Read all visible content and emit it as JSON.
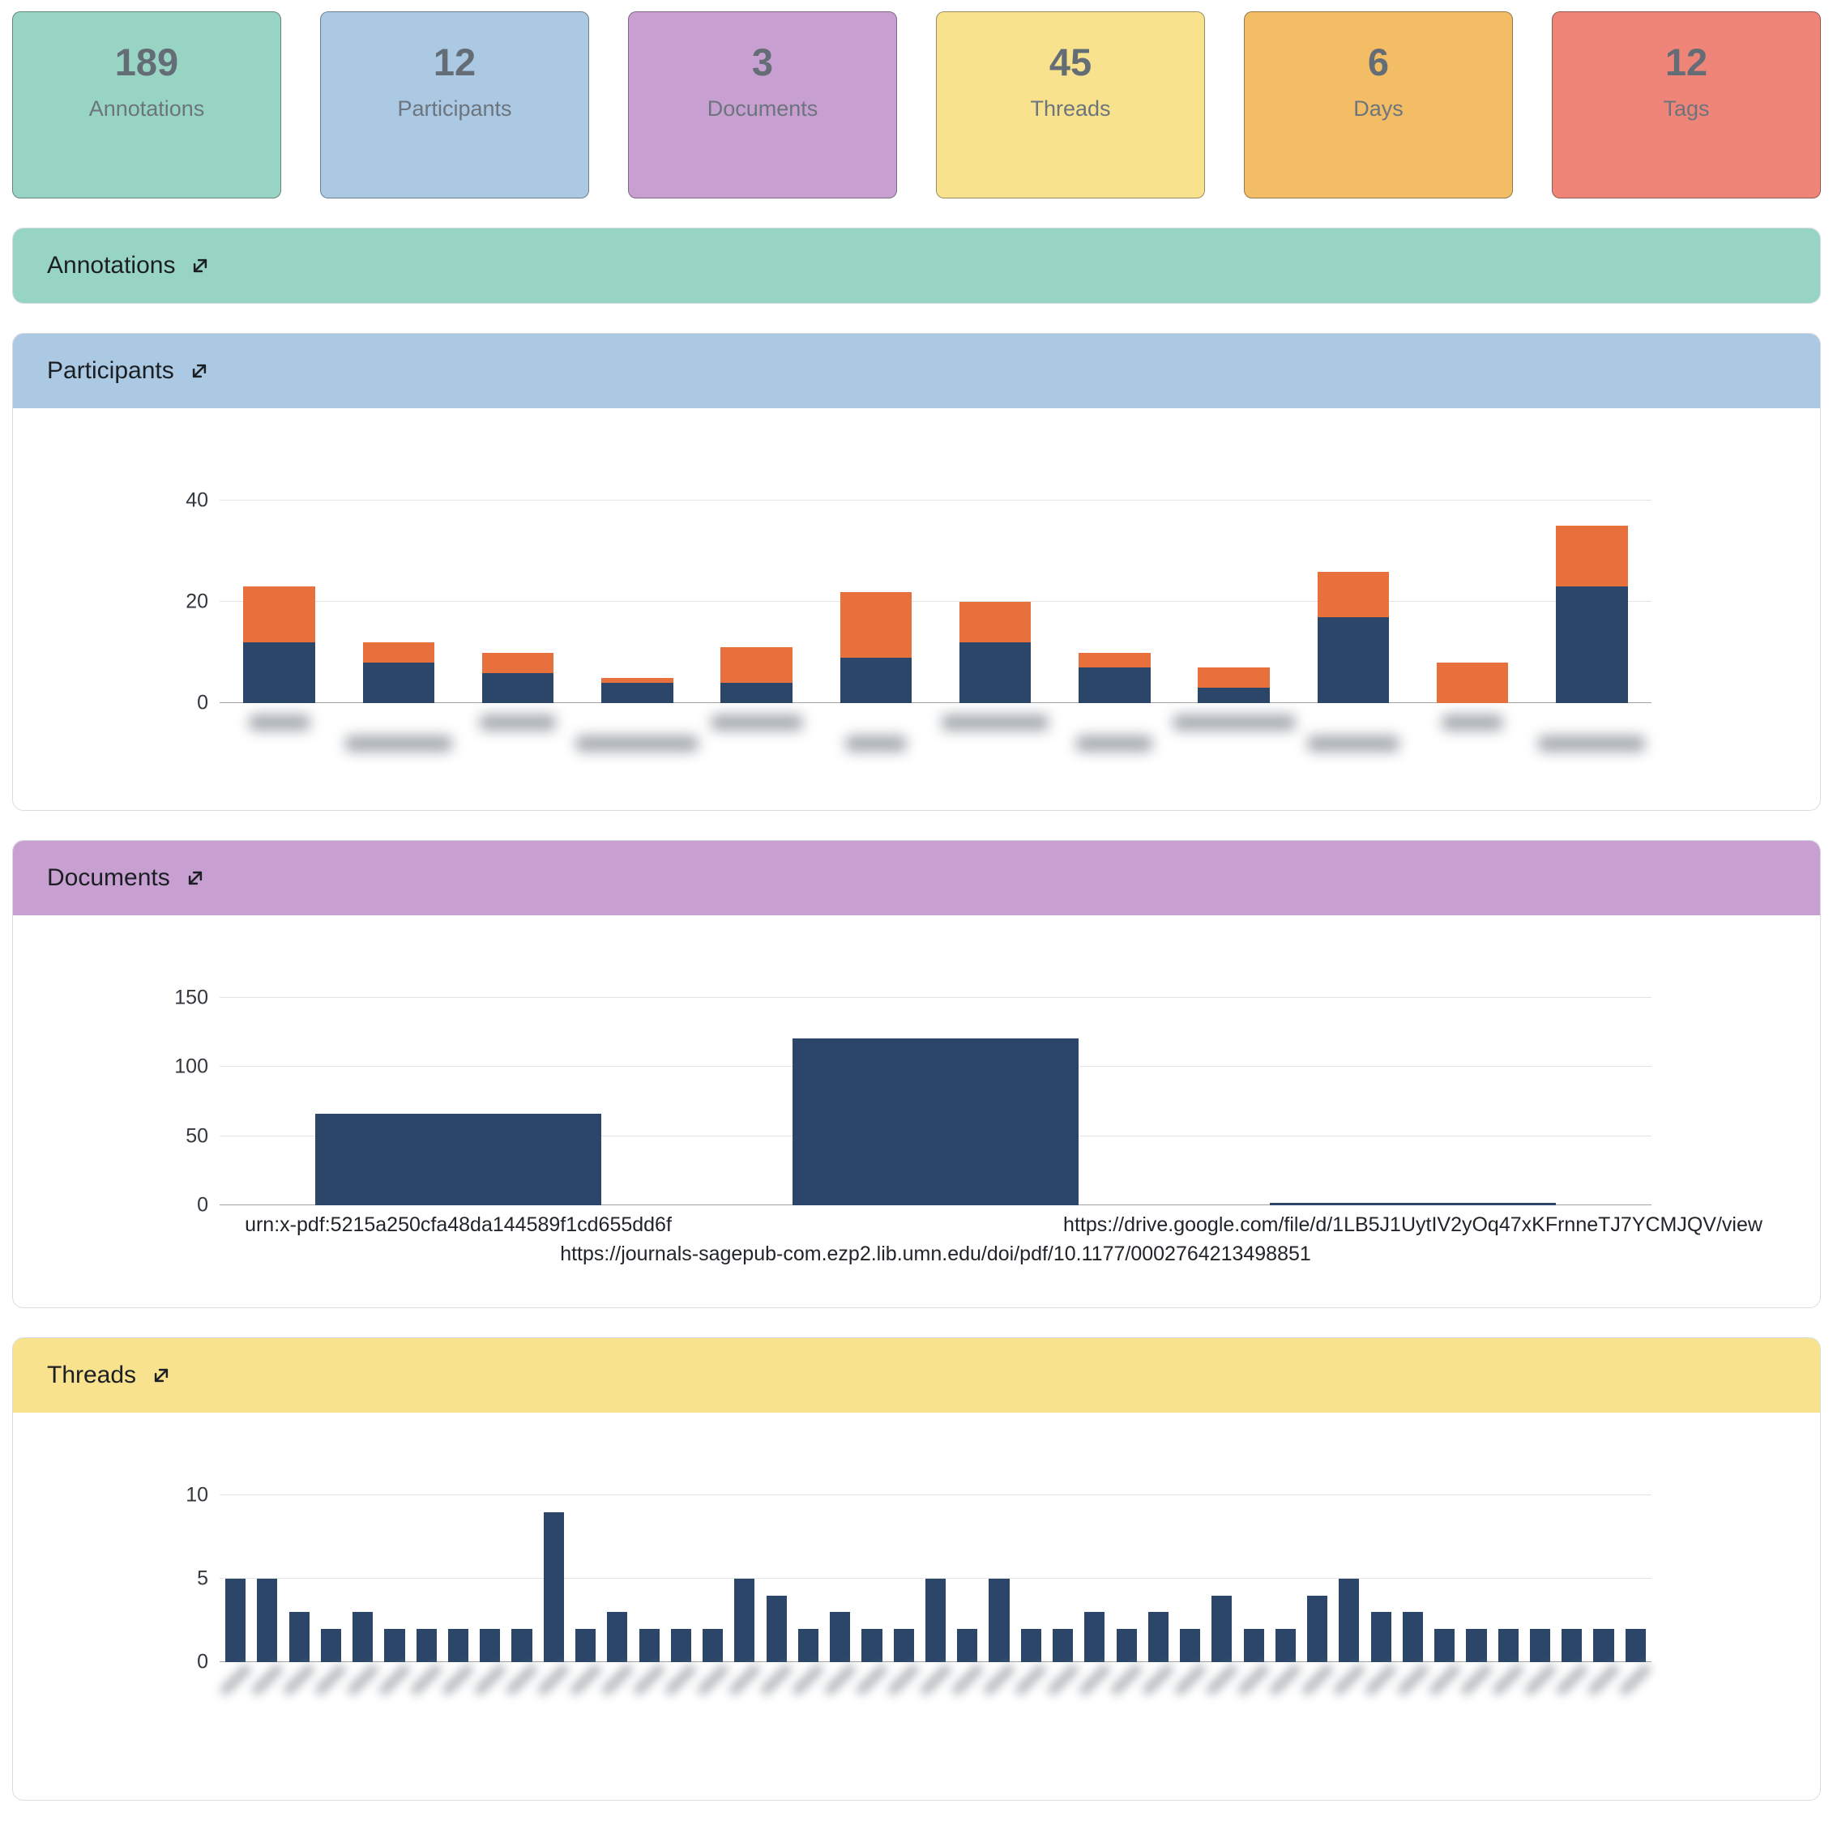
{
  "cards": [
    {
      "value": "189",
      "label": "Annotations",
      "color": "#98d4c4"
    },
    {
      "value": "12",
      "label": "Participants",
      "color": "#abc9e2"
    },
    {
      "value": "3",
      "label": "Documents",
      "color": "#c89fd1"
    },
    {
      "value": "45",
      "label": "Threads",
      "color": "#f8e28e"
    },
    {
      "value": "6",
      "label": "Days",
      "color": "#f3bd66"
    },
    {
      "value": "12",
      "label": "Tags",
      "color": "#ef8578"
    }
  ],
  "panels": [
    {
      "id": "annotations",
      "title": "Annotations",
      "color": "#98d4c4",
      "collapsed": true
    },
    {
      "id": "participants",
      "title": "Participants",
      "color": "#abc9e2",
      "collapsed": false
    },
    {
      "id": "documents",
      "title": "Documents",
      "color": "#c89fd1",
      "collapsed": false
    },
    {
      "id": "threads",
      "title": "Threads",
      "color": "#f8e28e",
      "collapsed": false
    }
  ],
  "chart_data": [
    {
      "id": "participants",
      "type": "bar",
      "stacked": true,
      "title": "Participants",
      "category_count": 12,
      "categories_note": "x-axis labels are blurred/unreadable in the screenshot",
      "series": [
        {
          "name": "segment-navy",
          "color": "#2b4668",
          "values": [
            12,
            8,
            6,
            4,
            4,
            9,
            12,
            7,
            3,
            17,
            0,
            23
          ]
        },
        {
          "name": "segment-orange",
          "color": "#e7703c",
          "values": [
            11,
            4,
            4,
            1,
            7,
            13,
            8,
            3,
            4,
            9,
            8,
            12
          ]
        }
      ],
      "totals": [
        23,
        12,
        10,
        5,
        11,
        22,
        20,
        10,
        7,
        26,
        8,
        35
      ],
      "ylim": [
        0,
        40
      ],
      "yticks": [
        0,
        20,
        40
      ],
      "grid": true,
      "legend": false
    },
    {
      "id": "documents",
      "type": "bar",
      "stacked": false,
      "title": "Documents",
      "categories": [
        "urn:x-pdf:5215a250cfa48da144589f1cd655dd6f",
        "https://journals-sagepub-com.ezp2.lib.umn.edu/doi/pdf/10.1177/0002764213498851",
        "https://drive.google.com/file/d/1LB5J1UytIV2yOq47xKFrnneTJ7YCMJQV/view"
      ],
      "values": [
        66,
        121,
        2
      ],
      "color": "#2b4668",
      "ylim": [
        0,
        150
      ],
      "yticks": [
        0,
        50,
        100,
        150
      ],
      "grid": true,
      "legend": false
    },
    {
      "id": "threads",
      "type": "bar",
      "stacked": false,
      "title": "Threads",
      "category_count": 45,
      "categories_note": "x-axis labels are blurred/unreadable in the screenshot",
      "values": [
        5,
        5,
        3,
        2,
        3,
        2,
        2,
        2,
        2,
        2,
        9,
        2,
        3,
        2,
        2,
        2,
        5,
        4,
        2,
        3,
        2,
        2,
        5,
        2,
        5,
        2,
        2,
        3,
        2,
        3,
        2,
        4,
        2,
        2,
        4,
        5,
        3,
        3,
        2,
        2,
        2,
        2,
        2,
        2,
        2
      ],
      "color": "#2b4668",
      "ylim": [
        0,
        10
      ],
      "yticks": [
        0,
        5,
        10
      ],
      "grid": true,
      "legend": false
    }
  ]
}
